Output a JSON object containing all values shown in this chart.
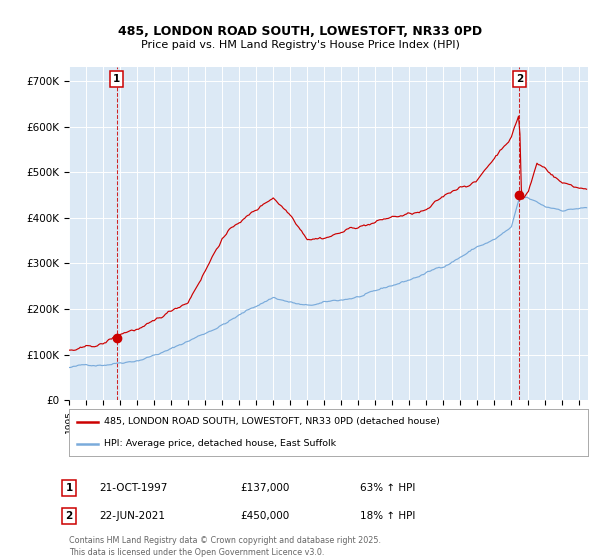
{
  "title": "485, LONDON ROAD SOUTH, LOWESTOFT, NR33 0PD",
  "subtitle": "Price paid vs. HM Land Registry's House Price Index (HPI)",
  "hpi_label": "HPI: Average price, detached house, East Suffolk",
  "property_label": "485, LONDON ROAD SOUTH, LOWESTOFT, NR33 0PD (detached house)",
  "red_color": "#cc0000",
  "blue_color": "#7aabdb",
  "bg_color": "#dce9f5",
  "grid_color": "#ffffff",
  "annotation1_date": "21-OCT-1997",
  "annotation1_price": "£137,000",
  "annotation1_hpi": "63% ↑ HPI",
  "annotation2_date": "22-JUN-2021",
  "annotation2_price": "£450,000",
  "annotation2_hpi": "18% ↑ HPI",
  "ylim": [
    0,
    730000
  ],
  "yticks": [
    0,
    100000,
    200000,
    300000,
    400000,
    500000,
    600000,
    700000
  ],
  "ytick_labels": [
    "£0",
    "£100K",
    "£200K",
    "£300K",
    "£400K",
    "£500K",
    "£600K",
    "£700K"
  ],
  "year_start": 1995,
  "year_end": 2025,
  "point1_year": 1997.8,
  "point1_value": 137000,
  "point2_year": 2021.47,
  "point2_value": 450000,
  "copyright_text": "Contains HM Land Registry data © Crown copyright and database right 2025.\nThis data is licensed under the Open Government Licence v3.0."
}
